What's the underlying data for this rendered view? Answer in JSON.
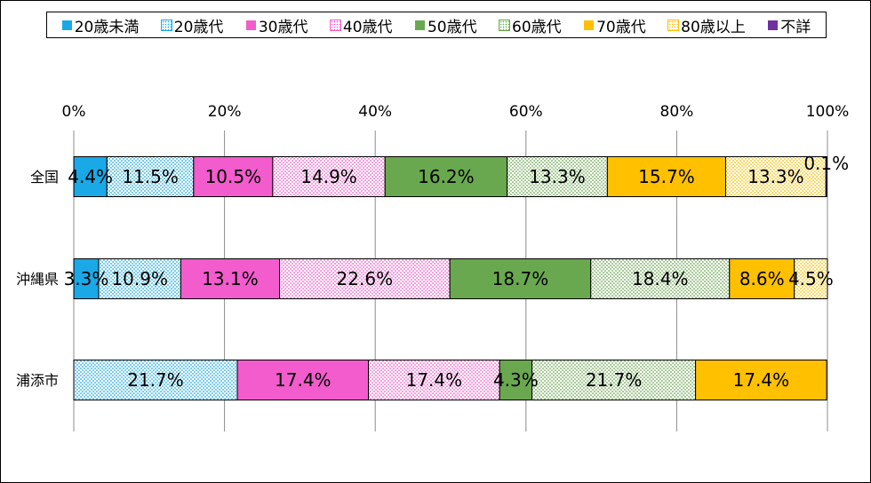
{
  "chart_data": {
    "type": "bar",
    "orientation": "horizontal",
    "stacked": "percent",
    "categories": [
      "全国",
      "沖縄県",
      "浦添市"
    ],
    "series": [
      {
        "name": "20歳未満",
        "color": "#1aa9e6",
        "pattern": "solid",
        "values": [
          4.4,
          3.3,
          0
        ]
      },
      {
        "name": "20歳代",
        "color": "#1aa9e6",
        "pattern": "dots",
        "values": [
          11.5,
          10.9,
          21.7
        ]
      },
      {
        "name": "30歳代",
        "color": "#f25ccc",
        "pattern": "solid",
        "values": [
          10.5,
          13.1,
          17.4
        ]
      },
      {
        "name": "40歳代",
        "color": "#f25ccc",
        "pattern": "dots",
        "values": [
          14.9,
          22.6,
          17.4
        ]
      },
      {
        "name": "50歳代",
        "color": "#6aa84f",
        "pattern": "solid",
        "values": [
          16.2,
          18.7,
          4.3
        ]
      },
      {
        "name": "60歳代",
        "color": "#6aa84f",
        "pattern": "dots",
        "values": [
          13.3,
          18.4,
          21.7
        ]
      },
      {
        "name": "70歳代",
        "color": "#ffc000",
        "pattern": "solid",
        "values": [
          15.7,
          8.6,
          17.4
        ]
      },
      {
        "name": "80歳以上",
        "color": "#ffc000",
        "pattern": "dots",
        "values": [
          13.3,
          4.5,
          0
        ]
      },
      {
        "name": "不詳",
        "color": "#7030a0",
        "pattern": "solid",
        "values": [
          0.1,
          0,
          0
        ]
      }
    ],
    "data_labels": [
      [
        "4.4%",
        "11.5%",
        "10.5%",
        "14.9%",
        "16.2%",
        "13.3%",
        "15.7%",
        "13.3%",
        "0.1%"
      ],
      [
        "3.3%",
        "10.9%",
        "13.1%",
        "22.6%",
        "18.7%",
        "18.4%",
        "8.6%",
        "4.5%",
        ""
      ],
      [
        "",
        "21.7%",
        "17.4%",
        "17.4%",
        "4.3%",
        "21.7%",
        "17.4%",
        "",
        ""
      ]
    ],
    "xlim": [
      0,
      100
    ],
    "xticks": [
      "0%",
      "20%",
      "40%",
      "60%",
      "80%",
      "100%"
    ],
    "grid": true,
    "legend_position": "top"
  }
}
